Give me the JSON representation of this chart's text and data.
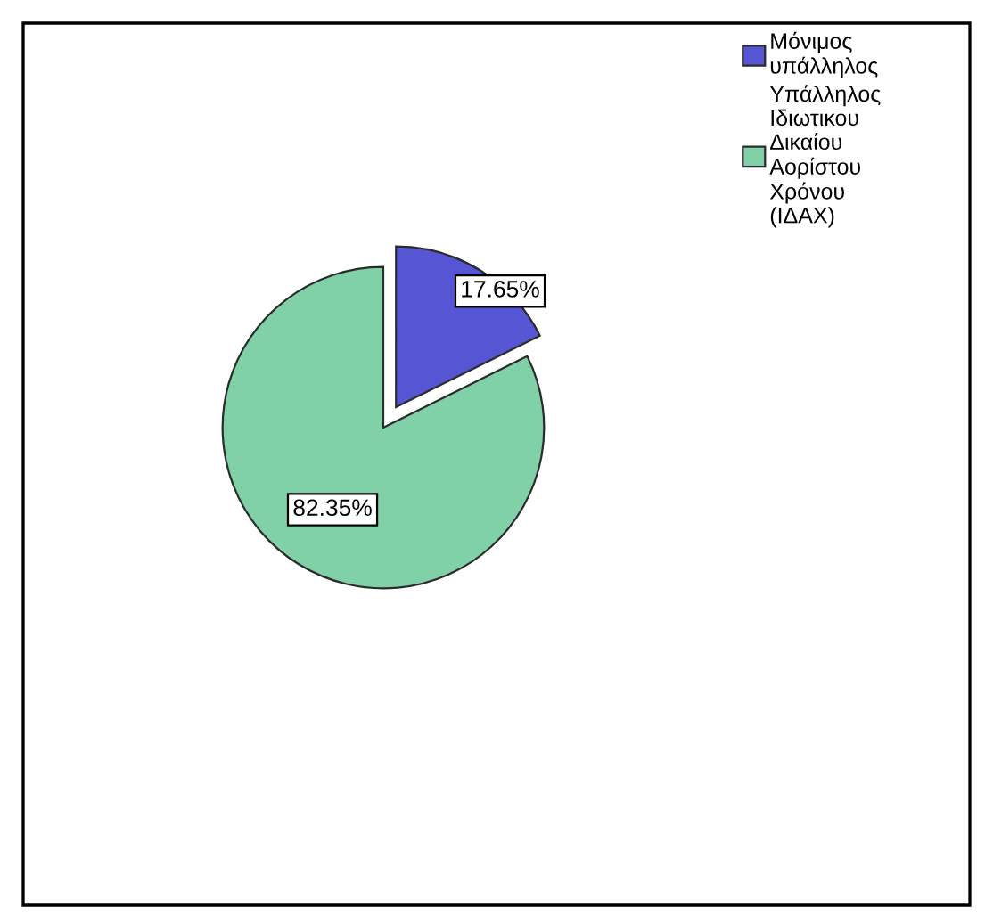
{
  "chart_data": {
    "type": "pie",
    "categories": [
      "Μόνιμος υπάλληλος",
      "Υπάλληλος Ιδιωτικου Δικαίου Αορίστου Χρόνου (ΙΔΑΧ)"
    ],
    "values": [
      17.65,
      82.35
    ],
    "colors": [
      "#5656d4",
      "#80d0a8"
    ],
    "value_labels": [
      "17.65%",
      "82.35%"
    ],
    "legend": "top right"
  }
}
